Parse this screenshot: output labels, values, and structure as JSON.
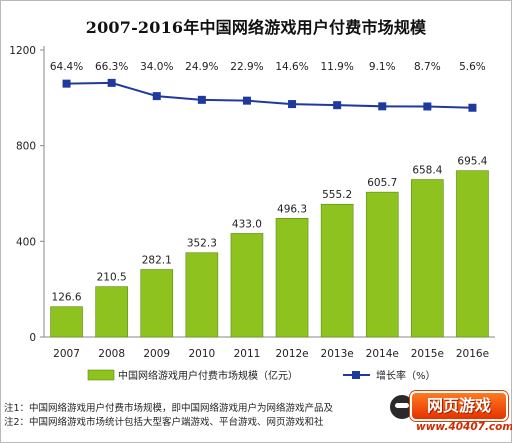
{
  "chart_data": {
    "type": "bar",
    "title": "2007-2016年中国网络游戏用户付费市场规模",
    "categories": [
      "2007",
      "2008",
      "2009",
      "2010",
      "2011",
      "2012e",
      "2013e",
      "2014e",
      "2015e",
      "2016e"
    ],
    "series": [
      {
        "name": "中国网络游戏用户付费市场规模（亿元）",
        "type": "bar",
        "axis": "left",
        "values": [
          126.6,
          210.5,
          282.1,
          352.3,
          433.0,
          496.3,
          555.2,
          605.7,
          658.4,
          695.4
        ],
        "labels": [
          "126.6",
          "210.5",
          "282.1",
          "352.3",
          "433.0",
          "496.3",
          "555.2",
          "605.7",
          "658.4",
          "695.4"
        ],
        "color": "#8dc21f"
      },
      {
        "name": "增长率（%）",
        "type": "line",
        "axis": "right",
        "values": [
          64.4,
          66.3,
          34.0,
          24.9,
          22.9,
          14.6,
          11.9,
          9.1,
          8.7,
          5.6
        ],
        "labels": [
          "64.4%",
          "66.3%",
          "34.0%",
          "24.9%",
          "22.9%",
          "14.6%",
          "11.9%",
          "9.1%",
          "8.7%",
          "5.6%"
        ],
        "color": "#1f3a9e"
      }
    ],
    "y_ticks": [
      "0",
      "400",
      "800",
      "1200"
    ],
    "ylim": [
      0,
      1200
    ],
    "grid": false,
    "legend_position": "bottom"
  },
  "notes": [
    "注1：中国网络游戏用户付费市场规模，即中国网络游戏用户为网络游戏产品及",
    "注2：中国网络游戏市场统计包括大型客户端游戏、平台游戏、网页游戏和社"
  ],
  "watermark": {
    "brand": "网页游戏",
    "url": "www.40407.com"
  }
}
